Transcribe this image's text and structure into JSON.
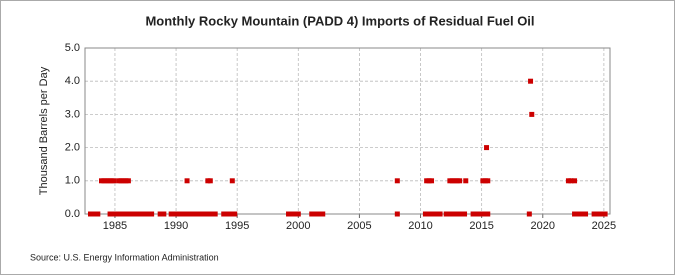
{
  "chart_data": {
    "type": "scatter",
    "title": "Monthly Rocky Mountain (PADD 4) Imports of Residual Fuel Oil",
    "y_label": "Thousand Barrels per Day",
    "source": "Source: U.S. Energy Information Administration",
    "color": "#cc0000",
    "grid": true,
    "xlim": [
      1982.55,
      2025.5
    ],
    "xticks": [
      1985,
      1990,
      1995,
      2000,
      2005,
      2010,
      2015,
      2020,
      2025
    ],
    "ylim": [
      0,
      5
    ],
    "yticks": [
      {
        "value": 0,
        "label": "0.0"
      },
      {
        "value": 1,
        "label": "1.0"
      },
      {
        "value": 2,
        "label": "2.0"
      },
      {
        "value": 3,
        "label": "3.0"
      },
      {
        "value": 4,
        "label": "4.0"
      },
      {
        "value": 5,
        "label": "5.0"
      }
    ],
    "x": [
      1983.0,
      1983.3,
      1983.6,
      1983.9,
      1984.1,
      1984.3,
      1984.5,
      1984.7,
      1984.9,
      1984.6,
      1984.9,
      1985.2,
      1985.5,
      1985.8,
      1986.1,
      1986.4,
      1985.3,
      1985.5,
      1985.7,
      1985.9,
      1986.1,
      1986.8,
      1987.1,
      1987.4,
      1987.7,
      1988.0,
      1988.7,
      1989.0,
      1989.6,
      1989.9,
      1990.2,
      1990.5,
      1990.8,
      1991.1,
      1991.4,
      1991.7,
      1992.0,
      1992.3,
      1992.6,
      1992.9,
      1993.2,
      1990.9,
      1992.6,
      1992.8,
      1993.9,
      1994.2,
      1994.5,
      1994.8,
      1994.6,
      1999.2,
      1999.5,
      1999.8,
      2000.0,
      2001.1,
      2001.4,
      2001.7,
      2002.0,
      2008.1,
      2008.1,
      2010.4,
      2010.7,
      2011.0,
      2011.3,
      2011.6,
      2010.5,
      2010.7,
      2010.9,
      2012.1,
      2012.4,
      2012.7,
      2013.0,
      2013.3,
      2013.6,
      2012.4,
      2012.6,
      2012.8,
      2013.0,
      2013.2,
      2013.7,
      2014.3,
      2014.6,
      2014.9,
      2015.2,
      2015.5,
      2015.1,
      2015.3,
      2015.5,
      2015.4,
      2018.9,
      2019.0,
      2019.1,
      2022.1,
      2022.3,
      2022.6,
      2022.6,
      2022.9,
      2023.2,
      2023.5,
      2024.2,
      2024.5,
      2024.8,
      2025.1
    ],
    "values": [
      0,
      0,
      0,
      1,
      1,
      1,
      1,
      1,
      1,
      0,
      0,
      0,
      0,
      0,
      0,
      0,
      1,
      1,
      1,
      1,
      1,
      0,
      0,
      0,
      0,
      0,
      0,
      0,
      0,
      0,
      0,
      0,
      0,
      0,
      0,
      0,
      0,
      0,
      0,
      0,
      0,
      1,
      1,
      1,
      0,
      0,
      0,
      0,
      1,
      0,
      0,
      0,
      0,
      0,
      0,
      0,
      0,
      1,
      0,
      0,
      0,
      0,
      0,
      0,
      1,
      1,
      1,
      0,
      0,
      0,
      0,
      0,
      0,
      1,
      1,
      1,
      1,
      1,
      1,
      0,
      0,
      0,
      0,
      0,
      1,
      1,
      1,
      2,
      0,
      4,
      3,
      1,
      1,
      1,
      0,
      0,
      0,
      0,
      0,
      0,
      0,
      0
    ]
  }
}
